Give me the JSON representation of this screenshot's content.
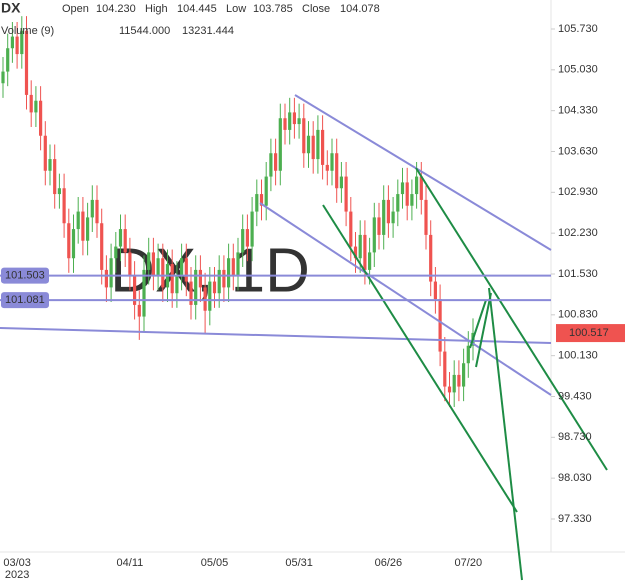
{
  "chart_data": {
    "type": "candlestick",
    "title": "DX",
    "readout": {
      "open_label": "Open",
      "open": {
        "value": 104.23,
        "label": "104.230"
      },
      "high_label": "High",
      "high": 104.445,
      "low_label": "Low",
      "low": 103.785,
      "close_label": "Close",
      "close": 104.078
    },
    "volume_label": "Volume (9)",
    "volume_values": [
      {
        "value": 11544,
        "label": "11544.000"
      },
      13231.444
    ],
    "watermark": "DX, 1D",
    "year_label": "2023",
    "categories": [
      null,
      null,
      null,
      "03/03",
      null,
      null,
      null,
      null,
      null,
      null,
      null,
      null,
      null,
      null,
      null,
      null,
      null,
      null,
      null,
      null,
      null,
      null,
      null,
      null,
      null,
      null,
      null,
      "04/11",
      null,
      null,
      null,
      null,
      null,
      null,
      null,
      null,
      null,
      null,
      null,
      null,
      null,
      null,
      null,
      null,
      null,
      "05/05",
      null,
      null,
      null,
      null,
      null,
      null,
      null,
      null,
      null,
      null,
      null,
      null,
      null,
      null,
      null,
      null,
      null,
      "05/31",
      null,
      null,
      null,
      null,
      null,
      null,
      null,
      null,
      null,
      null,
      null,
      null,
      null,
      null,
      null,
      null,
      null,
      null,
      "06/26",
      null,
      null,
      null,
      null,
      null,
      null,
      null,
      null,
      null,
      null,
      null,
      null,
      null,
      null,
      null,
      null,
      "07/20",
      null
    ],
    "open": [
      104.8,
      105.0,
      105.4,
      105.6,
      105.3,
      105.7,
      104.6,
      104.3,
      104.5,
      103.9,
      103.3,
      103.5,
      102.9,
      103.0,
      102.4,
      101.8,
      102.3,
      102.6,
      102.1,
      102.5,
      102.8,
      102.4,
      101.6,
      101.3,
      101.8,
      102.0,
      102.3,
      101.9,
      101.5,
      101.0,
      100.8,
      101.6,
      101.9,
      101.5,
      101.8,
      101.3,
      101.7,
      101.2,
      101.5,
      101.8,
      101.4,
      101.0,
      101.6,
      101.3,
      100.9,
      101.4,
      101.2,
      101.6,
      101.3,
      101.8,
      101.5,
      101.9,
      102.3,
      102.0,
      102.6,
      102.9,
      102.7,
      103.2,
      103.6,
      103.3,
      104.2,
      104.0,
      104.3,
      104.1,
      104.2,
      103.6,
      103.9,
      103.5,
      104.0,
      103.4,
      103.3,
      103.6,
      103.0,
      103.2,
      102.6,
      102.0,
      101.8,
      102.2,
      101.6,
      101.9,
      102.5,
      102.2,
      102.8,
      102.4,
      102.6,
      102.9,
      103.1,
      102.7,
      102.9,
      103.2,
      102.8,
      102.2,
      101.4,
      101.1,
      100.2,
      99.6,
      99.5,
      99.8,
      99.6,
      100.0,
      100.3
    ],
    "high": [
      105.25,
      105.65,
      105.85,
      105.85,
      105.95,
      105.95,
      104.85,
      104.75,
      104.75,
      104.15,
      103.75,
      103.75,
      103.25,
      103.25,
      102.65,
      102.55,
      102.85,
      102.85,
      102.75,
      103.05,
      103.05,
      102.65,
      101.85,
      102.05,
      102.25,
      102.55,
      102.55,
      102.15,
      101.75,
      101.25,
      101.85,
      102.15,
      102.15,
      102.05,
      102.05,
      101.95,
      101.95,
      101.75,
      102.05,
      102.05,
      101.65,
      101.85,
      101.85,
      101.55,
      101.65,
      101.65,
      101.85,
      101.85,
      102.05,
      102.05,
      102.15,
      102.55,
      102.55,
      102.85,
      103.15,
      103.15,
      103.45,
      103.85,
      103.85,
      104.45,
      104.45,
      104.55,
      104.55,
      104.45,
      104.45,
      104.15,
      104.15,
      104.25,
      104.25,
      103.65,
      103.85,
      103.85,
      103.45,
      103.45,
      102.85,
      102.25,
      102.45,
      102.45,
      102.15,
      102.75,
      102.75,
      103.05,
      103.05,
      102.85,
      103.15,
      103.35,
      103.35,
      103.15,
      103.45,
      103.45,
      103.05,
      102.45,
      101.65,
      101.35,
      100.45,
      99.85,
      100.05,
      100.05,
      100.25,
      100.55,
      100.77
    ],
    "low": [
      104.55,
      104.75,
      105.15,
      105.05,
      105.05,
      104.35,
      104.05,
      104.05,
      103.65,
      103.05,
      103.05,
      102.65,
      102.65,
      102.15,
      101.55,
      101.55,
      102.05,
      101.85,
      101.85,
      102.25,
      102.15,
      101.35,
      101.05,
      101.05,
      101.55,
      101.75,
      101.65,
      101.25,
      100.75,
      100.4,
      100.55,
      101.35,
      101.25,
      101.25,
      101.05,
      101.05,
      100.95,
      100.95,
      101.25,
      101.15,
      100.75,
      100.75,
      101.05,
      100.5,
      100.65,
      100.95,
      100.95,
      101.05,
      101.05,
      101.25,
      101.25,
      101.65,
      101.75,
      101.75,
      102.35,
      102.45,
      102.45,
      102.95,
      103.05,
      103.05,
      103.75,
      103.75,
      103.85,
      103.85,
      103.35,
      103.35,
      103.25,
      103.25,
      103.15,
      103.05,
      103.05,
      102.75,
      102.75,
      102.35,
      101.75,
      101.55,
      101.55,
      101.35,
      101.35,
      101.65,
      101.95,
      101.95,
      102.15,
      102.15,
      102.35,
      102.65,
      102.45,
      102.45,
      102.65,
      102.55,
      101.95,
      101.15,
      100.85,
      99.95,
      99.35,
      99.25,
      99.25,
      99.35,
      99.35,
      99.75,
      100.05
    ],
    "close": [
      105.0,
      105.4,
      105.6,
      105.3,
      105.7,
      104.6,
      104.3,
      104.5,
      103.9,
      103.3,
      103.5,
      102.9,
      103.0,
      102.4,
      101.8,
      102.3,
      102.6,
      102.1,
      102.5,
      102.8,
      102.4,
      101.6,
      101.3,
      101.8,
      102.0,
      102.3,
      101.9,
      101.5,
      101.0,
      100.8,
      101.6,
      101.9,
      101.5,
      101.8,
      101.3,
      101.7,
      101.2,
      101.5,
      101.8,
      101.4,
      101.0,
      101.6,
      101.3,
      100.9,
      101.4,
      101.2,
      101.6,
      101.3,
      101.8,
      101.5,
      101.9,
      102.3,
      102.0,
      102.6,
      102.9,
      102.7,
      103.2,
      103.6,
      103.3,
      104.2,
      104.0,
      104.3,
      104.1,
      104.2,
      103.6,
      103.9,
      103.5,
      104.0,
      103.4,
      103.3,
      103.6,
      103.0,
      103.2,
      102.6,
      102.0,
      101.8,
      102.2,
      101.6,
      101.9,
      102.5,
      102.2,
      102.8,
      102.4,
      102.6,
      102.9,
      103.1,
      102.7,
      102.9,
      103.2,
      102.8,
      102.2,
      101.4,
      101.1,
      100.2,
      99.6,
      99.5,
      99.8,
      99.6,
      100.0,
      100.3,
      100.52
    ],
    "up_color": "#4caf50",
    "down_color": "#ef5350",
    "price_lines": [
      101.503,
      101.081
    ],
    "price_line_color": "#8a8ad8",
    "last_price": 100.517,
    "ylim": [
      96.764,
      106.227
    ],
    "yticks": [
      {
        "value": 105.73,
        "label": "105.730"
      },
      {
        "value": 105.03,
        "label": "105.030"
      },
      {
        "value": 104.33,
        "label": "104.330"
      },
      {
        "value": 103.63,
        "label": "103.630"
      },
      {
        "value": 102.93,
        "label": "102.930"
      },
      {
        "value": 102.23,
        "label": "102.230"
      },
      {
        "value": 101.53,
        "label": "101.530"
      },
      {
        "value": 100.83,
        "label": "100.830"
      },
      {
        "value": 100.13,
        "label": "100.130"
      },
      {
        "value": 99.43,
        "label": "99.430"
      },
      {
        "value": 98.73,
        "label": "98.730"
      },
      {
        "value": 98.03,
        "label": "98.030"
      },
      {
        "value": 97.33,
        "label": "97.330"
      }
    ]
  }
}
